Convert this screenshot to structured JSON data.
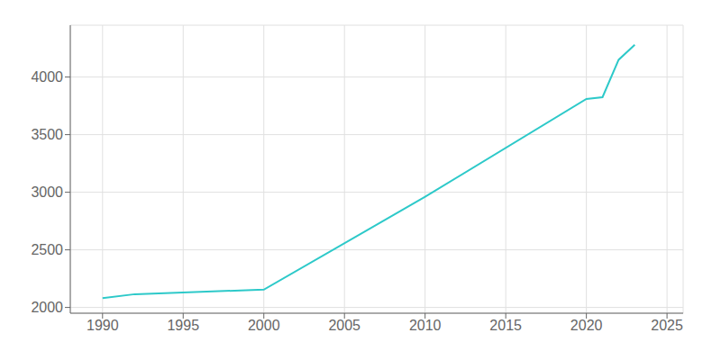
{
  "chart_data": {
    "type": "line",
    "x": [
      1990,
      1992,
      2000,
      2010,
      2020,
      2021,
      2022,
      2023
    ],
    "values": [
      2080,
      2115,
      2155,
      2960,
      3810,
      3825,
      4150,
      4280
    ],
    "color": "#2DC9C9",
    "xlim": [
      1988,
      2026
    ],
    "ylim": [
      1950,
      4450
    ],
    "xticks": [
      1990,
      1995,
      2000,
      2005,
      2010,
      2015,
      2020,
      2025
    ],
    "yticks": [
      2000,
      2500,
      3000,
      3500,
      4000
    ],
    "grid": true
  }
}
